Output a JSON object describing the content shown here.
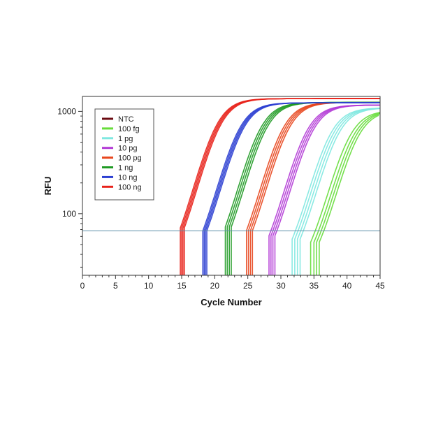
{
  "chart_data": {
    "type": "line",
    "xlabel": "Cycle Number",
    "ylabel": "RFU",
    "xlim": [
      0,
      45
    ],
    "ylim": [
      25,
      1400
    ],
    "yscale": "log",
    "x_ticks": [
      0,
      5,
      10,
      15,
      20,
      25,
      30,
      35,
      40,
      45
    ],
    "x_tick_labels": [
      "0",
      "5",
      "10",
      "15",
      "20",
      "25",
      "30",
      "35",
      "40",
      "45"
    ],
    "y_ticks": [
      100,
      1000
    ],
    "y_tick_labels": [
      "100",
      "1000"
    ],
    "grid": false,
    "legend_position": "top-left",
    "threshold": 68,
    "threshold_color": "#5b8fa8",
    "series": [
      {
        "name": "NTC",
        "color": "#6b0b12",
        "replicates": []
      },
      {
        "name": "100 fg",
        "color": "#66dd3a",
        "plateau": 1000,
        "replicates": [
          {
            "start": 34.5,
            "mid": 40.1
          },
          {
            "start": 35.0,
            "mid": 40.6
          },
          {
            "start": 35.4,
            "mid": 41.0
          },
          {
            "start": 35.8,
            "mid": 41.4
          }
        ]
      },
      {
        "name": "1 pg",
        "color": "#7ee8e0",
        "plateau": 1060,
        "replicates": [
          {
            "start": 31.7,
            "mid": 37.2
          },
          {
            "start": 32.1,
            "mid": 37.6
          },
          {
            "start": 32.5,
            "mid": 38.0
          },
          {
            "start": 32.9,
            "mid": 38.4
          }
        ]
      },
      {
        "name": "10 pg",
        "color": "#b33ad6",
        "plateau": 1130,
        "replicates": [
          {
            "start": 28.2,
            "mid": 33.6
          },
          {
            "start": 28.5,
            "mid": 33.9
          },
          {
            "start": 28.8,
            "mid": 34.2
          },
          {
            "start": 29.1,
            "mid": 34.5
          }
        ]
      },
      {
        "name": "100 pg",
        "color": "#e8451c",
        "plateau": 1200,
        "replicates": [
          {
            "start": 24.8,
            "mid": 30.0
          },
          {
            "start": 25.1,
            "mid": 30.3
          },
          {
            "start": 25.4,
            "mid": 30.6
          },
          {
            "start": 25.7,
            "mid": 30.9
          }
        ]
      },
      {
        "name": "1 ng",
        "color": "#1f9a24",
        "plateau": 1200,
        "replicates": [
          {
            "start": 21.6,
            "mid": 26.6
          },
          {
            "start": 21.9,
            "mid": 26.9
          },
          {
            "start": 22.2,
            "mid": 27.2
          },
          {
            "start": 22.5,
            "mid": 27.5
          }
        ]
      },
      {
        "name": "10 ng",
        "color": "#2c3fd2",
        "plateau": 1190,
        "replicates": [
          {
            "start": 18.2,
            "mid": 23.4
          },
          {
            "start": 18.4,
            "mid": 23.6
          },
          {
            "start": 18.6,
            "mid": 23.8
          },
          {
            "start": 18.8,
            "mid": 24.0
          }
        ]
      },
      {
        "name": "100 ng",
        "color": "#e8211a",
        "plateau": 1310,
        "replicates": [
          {
            "start": 14.8,
            "mid": 20.0
          },
          {
            "start": 15.0,
            "mid": 20.2
          },
          {
            "start": 15.2,
            "mid": 20.4
          },
          {
            "start": 15.4,
            "mid": 20.6
          }
        ]
      }
    ]
  }
}
